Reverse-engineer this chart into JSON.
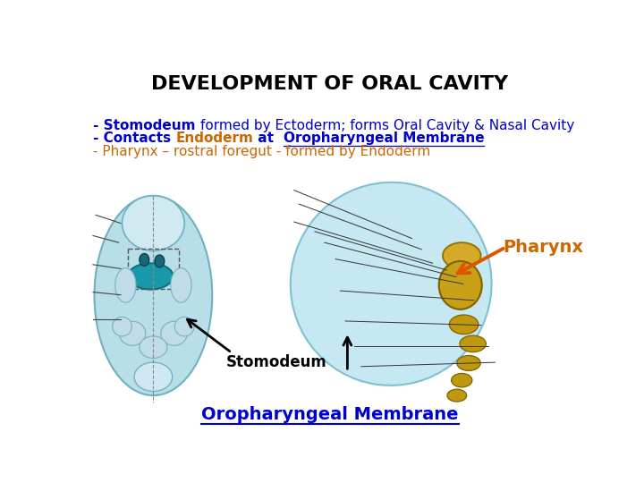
{
  "title": "DEVELOPMENT OF ORAL CAVITY",
  "title_color": "#000000",
  "title_fontsize": 16,
  "title_fontweight": "bold",
  "bg_color": "#ffffff",
  "line1_parts": [
    {
      "text": "- Stomodeum ",
      "color": "#0000cc",
      "bold": true,
      "underline": false
    },
    {
      "text": "formed by Ectoderm; forms Oral Cavity & Nasal Cavity",
      "color": "#0000cc",
      "bold": false,
      "underline": false
    }
  ],
  "line2_parts": [
    {
      "text": "- Contacts ",
      "color": "#0000cc",
      "bold": true,
      "underline": false
    },
    {
      "text": "Endoderm",
      "color": "#cc6600",
      "bold": true,
      "underline": false
    },
    {
      "text": " at  ",
      "color": "#0000cc",
      "bold": true,
      "underline": false
    },
    {
      "text": "Oropharyngeal Membrane",
      "color": "#0000cc",
      "bold": true,
      "underline": true
    }
  ],
  "line3_parts": [
    {
      "text": "- Pharynx – rostral foregut - formed by Endoderm",
      "color": "#cc6600",
      "bold": false,
      "underline": false
    }
  ],
  "label_pharynx": "Pharynx",
  "label_pharynx_color": "#cc6600",
  "label_stomodeum": "Stomodeum",
  "label_stomodeum_color": "#000000",
  "label_oropharyngeal": "Oropharyngeal Membrane",
  "label_oropharyngeal_color": "#0000cc",
  "text_fontsize": 10,
  "label_fontsize": 11
}
